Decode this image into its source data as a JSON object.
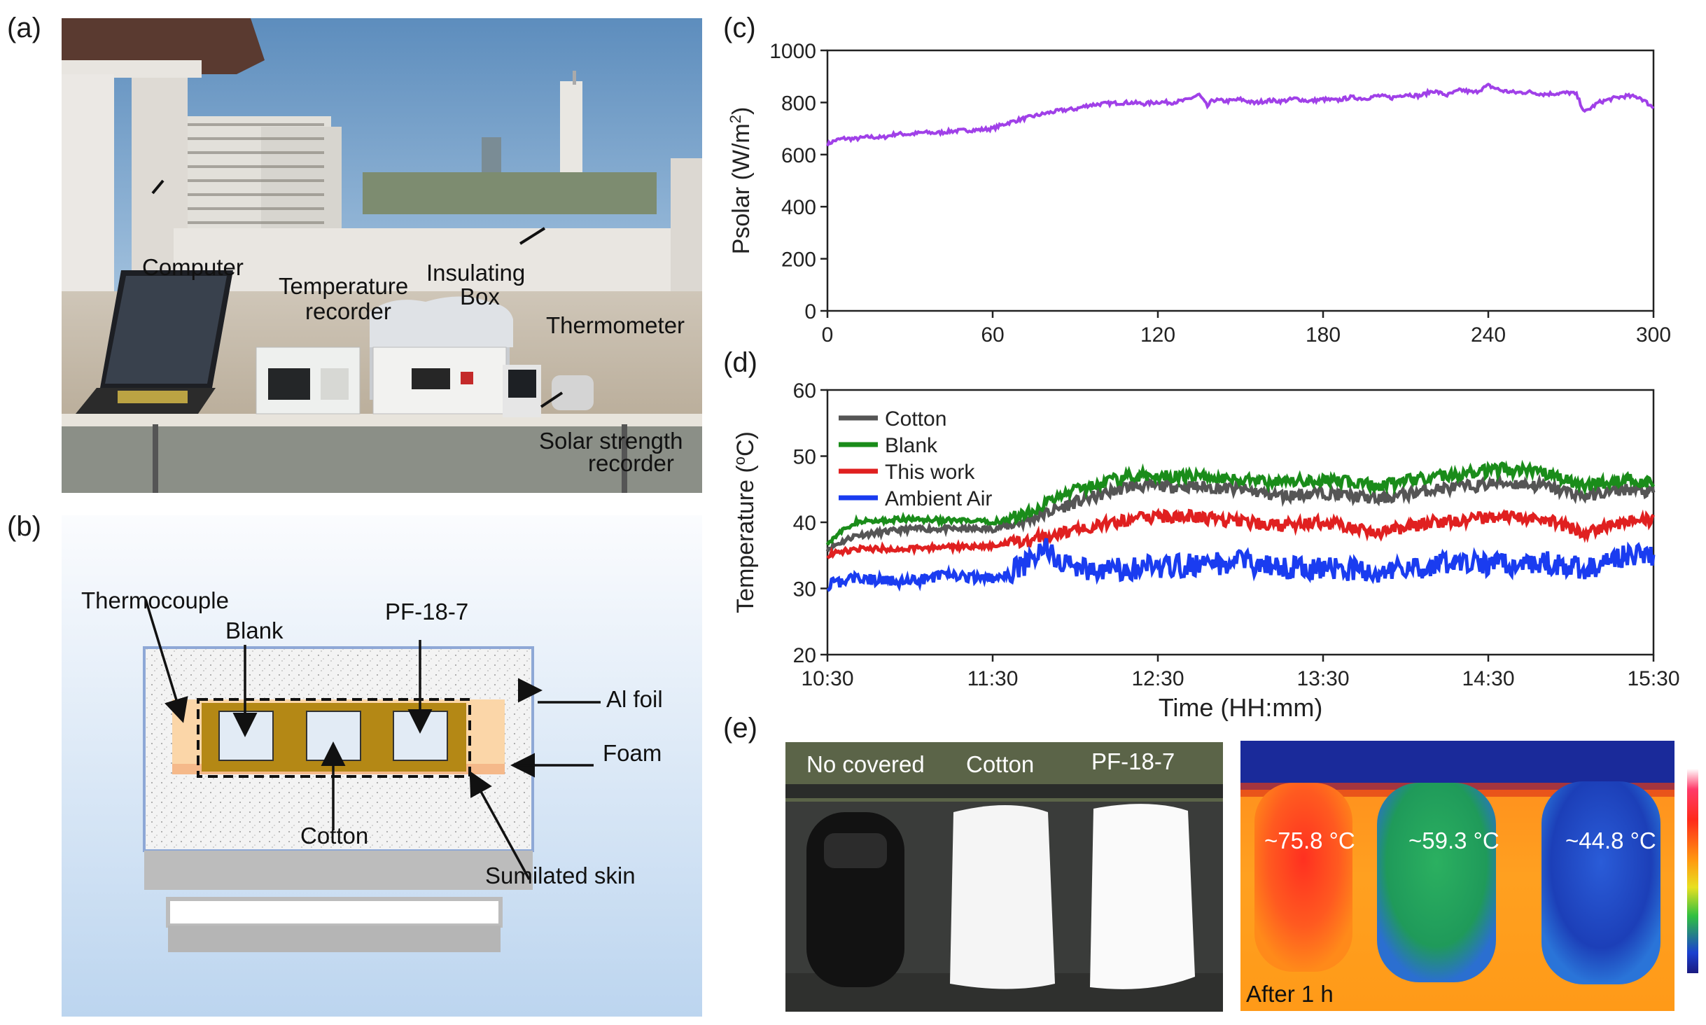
{
  "panels": {
    "a": "(a)",
    "b": "(b)",
    "c": "(c)",
    "d": "(d)",
    "e": "(e)"
  },
  "panel_a": {
    "labels": {
      "computer": "Computer",
      "temperature_recorder_1": "Temperature",
      "temperature_recorder_2": "recorder",
      "insulating_box_1": "Insulating",
      "insulating_box_2": "Box",
      "thermometer": "Thermometer",
      "solar_recorder_1": "Solar strength",
      "solar_recorder_2": "recorder"
    }
  },
  "panel_b": {
    "labels": {
      "thermocouple": "Thermocouple",
      "blank": "Blank",
      "pf": "PF-18-7",
      "al_foil": "Al foil",
      "foam": "Foam",
      "cotton": "Cotton",
      "skin": "Sumilated skin"
    }
  },
  "chart_data": [
    {
      "type": "line",
      "id": "c",
      "xlabel": "",
      "ylabel_main": "Psolar (W/m",
      "ylabel_sup": "2",
      "ylabel_end": ")",
      "xlim": [
        0,
        300
      ],
      "ylim": [
        0,
        1000
      ],
      "xticks": [
        0,
        60,
        120,
        180,
        240,
        300
      ],
      "yticks": [
        0,
        200,
        400,
        600,
        800,
        1000
      ],
      "series": [
        {
          "name": "Psolar",
          "color": "#a040e8",
          "x": [
            0,
            3,
            6,
            10,
            15,
            20,
            25,
            30,
            35,
            40,
            45,
            50,
            55,
            60,
            65,
            70,
            75,
            80,
            85,
            90,
            95,
            100,
            105,
            110,
            115,
            120,
            125,
            130,
            135,
            138,
            140,
            145,
            150,
            155,
            160,
            165,
            170,
            175,
            180,
            185,
            190,
            195,
            200,
            205,
            210,
            215,
            220,
            225,
            230,
            235,
            240,
            245,
            250,
            255,
            260,
            265,
            270,
            272,
            275,
            280,
            285,
            290,
            295,
            300
          ],
          "values": [
            640,
            655,
            662,
            660,
            668,
            665,
            680,
            678,
            685,
            683,
            690,
            693,
            695,
            700,
            720,
            735,
            748,
            760,
            770,
            775,
            790,
            795,
            798,
            800,
            795,
            802,
            800,
            808,
            830,
            785,
            810,
            805,
            812,
            798,
            808,
            805,
            815,
            805,
            812,
            808,
            820,
            815,
            826,
            818,
            832,
            825,
            845,
            828,
            848,
            838,
            865,
            845,
            838,
            840,
            832,
            835,
            838,
            830,
            762,
            800,
            815,
            825,
            820,
            780
          ]
        }
      ]
    },
    {
      "type": "line",
      "id": "d",
      "xlabel": "Time (HH:mm)",
      "ylabel_main": "Temperature (",
      "ylabel_sup": "o",
      "ylabel_end": "C)",
      "ylim": [
        20,
        60
      ],
      "yticks": [
        20,
        30,
        40,
        50,
        60
      ],
      "x_minutes": [
        0,
        300
      ],
      "tick_minutes": [
        0,
        60,
        120,
        180,
        240,
        300
      ],
      "tick_labels": [
        "10:30",
        "11:30",
        "12:30",
        "13:30",
        "14:30",
        "15:30"
      ],
      "series": [
        {
          "name": "Cotton",
          "color": "#555555",
          "knots_t": [
            0,
            10,
            30,
            60,
            70,
            90,
            110,
            130,
            150,
            165,
            180,
            200,
            220,
            235,
            245,
            260,
            275,
            290,
            300
          ],
          "knots_v": [
            36,
            38,
            39,
            39,
            40,
            43,
            45.5,
            45.5,
            45,
            44,
            44.5,
            43.5,
            45,
            45.5,
            46,
            45.5,
            44,
            45,
            44.5
          ]
        },
        {
          "name": "Blank",
          "color": "#1a8c1a",
          "knots_t": [
            0,
            10,
            30,
            60,
            70,
            90,
            110,
            130,
            150,
            165,
            180,
            200,
            220,
            235,
            245,
            260,
            275,
            290,
            300
          ],
          "knots_v": [
            37,
            40,
            40.5,
            40,
            41,
            45,
            47,
            47,
            46.5,
            46,
            46.5,
            45.5,
            47,
            47.5,
            48,
            47.5,
            45.5,
            46.5,
            46
          ]
        },
        {
          "name": "This work",
          "color": "#e02020",
          "knots_t": [
            0,
            10,
            30,
            60,
            70,
            90,
            110,
            130,
            150,
            165,
            180,
            200,
            220,
            235,
            245,
            260,
            275,
            290,
            300
          ],
          "knots_v": [
            35,
            36,
            36,
            36.5,
            37,
            39,
            40.5,
            41,
            40,
            39.5,
            40,
            38.5,
            40,
            40.5,
            41,
            40.5,
            38.5,
            40,
            40.5
          ]
        },
        {
          "name": "Ambient Air",
          "color": "#1a3cf0",
          "knots_t": [
            0,
            10,
            30,
            45,
            60,
            70,
            80,
            90,
            110,
            130,
            150,
            165,
            180,
            200,
            220,
            235,
            245,
            260,
            275,
            290,
            300
          ],
          "knots_v": [
            30.5,
            31.5,
            31,
            32,
            31.5,
            33,
            36,
            33,
            33,
            33.5,
            34,
            33,
            33,
            32.5,
            33.5,
            34,
            33.5,
            34,
            33,
            35,
            35
          ]
        }
      ],
      "legend": [
        "Cotton",
        "Blank",
        "This work",
        "Ambient Air"
      ]
    }
  ],
  "panel_e": {
    "photo_labels": [
      "No covered",
      "Cotton",
      "PF-18-7"
    ],
    "thermal_temps": [
      "~75.8 °C",
      "~59.3 °C",
      "~44.8 °C"
    ],
    "after": "After 1 h"
  }
}
